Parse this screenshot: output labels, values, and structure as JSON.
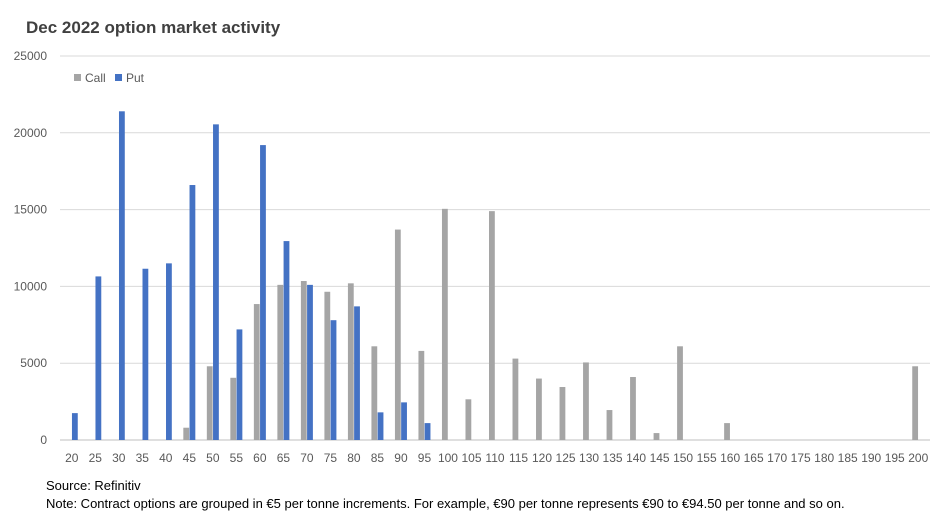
{
  "chart_data": {
    "type": "bar",
    "title": "Dec 2022 option market activity",
    "categories": [
      "20",
      "25",
      "30",
      "35",
      "40",
      "45",
      "50",
      "55",
      "60",
      "65",
      "70",
      "75",
      "80",
      "85",
      "90",
      "95",
      "100",
      "105",
      "110",
      "115",
      "120",
      "125",
      "130",
      "135",
      "140",
      "145",
      "150",
      "155",
      "160",
      "165",
      "170",
      "175",
      "180",
      "185",
      "190",
      "195",
      "200"
    ],
    "series": [
      {
        "name": "Call",
        "color": "#a5a5a5",
        "values": [
          0,
          0,
          0,
          0,
          0,
          800,
          4800,
          4050,
          8850,
          10100,
          10350,
          9650,
          10200,
          6100,
          13700,
          5800,
          15050,
          2650,
          14900,
          5300,
          4000,
          3450,
          5050,
          1950,
          4100,
          450,
          6100,
          0,
          1100,
          0,
          0,
          0,
          0,
          0,
          0,
          0,
          4800
        ]
      },
      {
        "name": "Put",
        "color": "#4472c4",
        "values": [
          1750,
          10650,
          21400,
          11150,
          11500,
          16600,
          20550,
          7200,
          19200,
          12950,
          10100,
          7800,
          8700,
          1800,
          2450,
          1100,
          0,
          0,
          0,
          0,
          0,
          0,
          0,
          0,
          0,
          0,
          0,
          0,
          0,
          0,
          0,
          0,
          0,
          0,
          0,
          0,
          0
        ]
      }
    ],
    "ylim": [
      0,
      25000
    ],
    "yticks": [
      0,
      5000,
      10000,
      15000,
      20000,
      25000
    ],
    "grid": true,
    "legend": "top-left"
  },
  "footer": {
    "source": "Source: Refinitiv",
    "note": "Note: Contract options are grouped in €5 per tonne increments. For example, €90 per tonne represents €90 to €94.50 per tonne and so on."
  }
}
